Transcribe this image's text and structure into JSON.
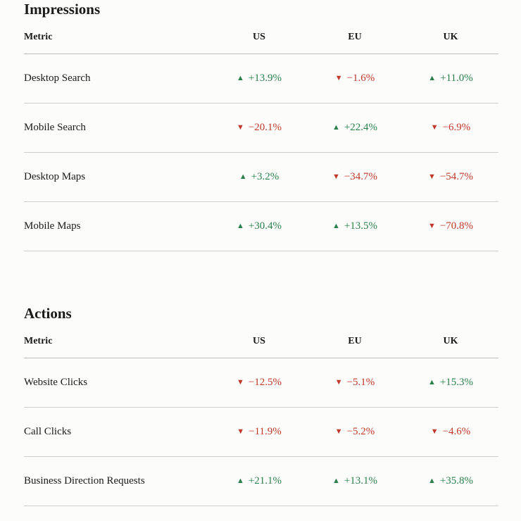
{
  "colors": {
    "up": "#2a7f4c",
    "down": "#c0392b",
    "rule": "#cfcfcf",
    "background": "#fcfcfb"
  },
  "icons": {
    "up": "triangle-up-icon",
    "down": "triangle-down-icon"
  },
  "impressions": {
    "title": "Impressions",
    "columns": [
      "Metric",
      "US",
      "EU",
      "UK"
    ],
    "rows": [
      {
        "metric": "Desktop Search",
        "values": [
          {
            "dir": "up",
            "arrow": "▲",
            "text": "+13.9%"
          },
          {
            "dir": "down",
            "arrow": "▼",
            "text": "−1.6%"
          },
          {
            "dir": "up",
            "arrow": "▲",
            "text": "+11.0%"
          }
        ]
      },
      {
        "metric": "Mobile Search",
        "values": [
          {
            "dir": "down",
            "arrow": "▼",
            "text": "−20.1%"
          },
          {
            "dir": "up",
            "arrow": "▲",
            "text": "+22.4%"
          },
          {
            "dir": "down",
            "arrow": "▼",
            "text": "−6.9%"
          }
        ]
      },
      {
        "metric": "Desktop Maps",
        "values": [
          {
            "dir": "up",
            "arrow": "▲",
            "text": "+3.2%"
          },
          {
            "dir": "down",
            "arrow": "▼",
            "text": "−34.7%"
          },
          {
            "dir": "down",
            "arrow": "▼",
            "text": "−54.7%"
          }
        ]
      },
      {
        "metric": "Mobile Maps",
        "values": [
          {
            "dir": "up",
            "arrow": "▲",
            "text": "+30.4%"
          },
          {
            "dir": "up",
            "arrow": "▲",
            "text": "+13.5%"
          },
          {
            "dir": "down",
            "arrow": "▼",
            "text": "−70.8%"
          }
        ]
      }
    ]
  },
  "actions": {
    "title": "Actions",
    "columns": [
      "Metric",
      "US",
      "EU",
      "UK"
    ],
    "rows": [
      {
        "metric": "Website Clicks",
        "values": [
          {
            "dir": "down",
            "arrow": "▼",
            "text": "−12.5%"
          },
          {
            "dir": "down",
            "arrow": "▼",
            "text": "−5.1%"
          },
          {
            "dir": "up",
            "arrow": "▲",
            "text": "+15.3%"
          }
        ]
      },
      {
        "metric": "Call Clicks",
        "values": [
          {
            "dir": "down",
            "arrow": "▼",
            "text": "−11.9%"
          },
          {
            "dir": "down",
            "arrow": "▼",
            "text": "−5.2%"
          },
          {
            "dir": "down",
            "arrow": "▼",
            "text": "−4.6%"
          }
        ]
      },
      {
        "metric": "Business Direction Requests",
        "values": [
          {
            "dir": "up",
            "arrow": "▲",
            "text": "+21.1%"
          },
          {
            "dir": "up",
            "arrow": "▲",
            "text": "+13.1%"
          },
          {
            "dir": "up",
            "arrow": "▲",
            "text": "+35.8%"
          }
        ]
      }
    ]
  }
}
